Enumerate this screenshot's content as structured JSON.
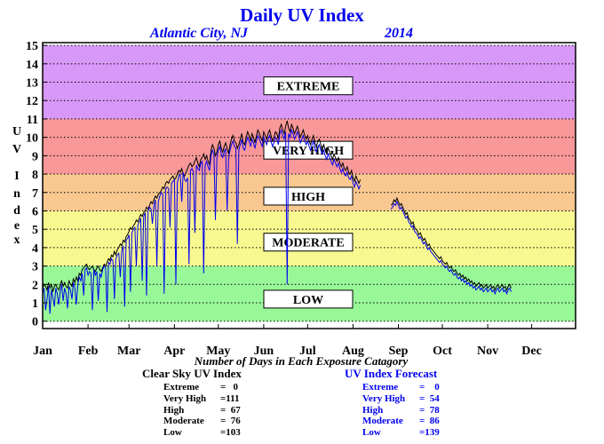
{
  "title": "Daily UV Index",
  "location": "Atlantic City, NJ",
  "year": "2014",
  "ylabel": "UV Index",
  "xlabel_caption": "Number of Days in Each Exposure Catagory",
  "colors": {
    "extreme": "#d898f8",
    "very_high": "#f89898",
    "high": "#f8c890",
    "moderate": "#f8f890",
    "low": "#98f898",
    "clear_sky_line": "#000000",
    "forecast_line": "#0000ee",
    "title": "#0000ee"
  },
  "chart_data": {
    "type": "line",
    "title": "Daily UV Index",
    "ylabel": "UV Index",
    "ylim": [
      0,
      15
    ],
    "yticks": [
      "0",
      "1",
      "2",
      "3",
      "4",
      "5",
      "6",
      "7",
      "8",
      "9",
      "10",
      "11",
      "12",
      "13",
      "14",
      "15"
    ],
    "months": [
      "Jan",
      "Feb",
      "Mar",
      "Apr",
      "May",
      "Jun",
      "Jul",
      "Aug",
      "Sep",
      "Oct",
      "Nov",
      "Dec"
    ],
    "grid": true,
    "bands": [
      {
        "label": "EXTREME",
        "from": 11,
        "to": 15,
        "label_level": 12.8
      },
      {
        "label": "VERY HIGH",
        "from": 8,
        "to": 11,
        "label_level": 9.3
      },
      {
        "label": "HIGH",
        "from": 6,
        "to": 8,
        "label_level": 6.8
      },
      {
        "label": "MODERATE",
        "from": 3,
        "to": 6,
        "label_level": 4.3
      },
      {
        "label": "LOW",
        "from": 0,
        "to": 3,
        "label_level": 1.2
      }
    ],
    "series": [
      {
        "role": "clear_sky",
        "start_day": 1,
        "values": [
          1.8,
          2.0,
          1.9,
          1.7,
          2.1,
          1.8,
          2.0,
          1.6,
          1.9,
          2.0,
          1.8,
          1.7,
          2.0,
          2.2,
          1.9,
          2.1,
          1.9,
          1.8,
          2.2,
          2.0,
          1.9,
          2.3,
          2.1,
          2.4,
          2.2,
          2.6,
          2.5,
          2.8,
          2.9,
          3.0,
          3.1,
          2.9,
          2.8,
          2.9,
          3.0,
          2.8,
          2.7,
          2.9,
          3.0,
          2.8,
          2.7,
          2.9,
          3.1,
          3.0,
          3.2,
          3.4,
          3.3,
          3.6,
          3.5,
          3.8,
          3.6,
          3.9,
          4.0,
          4.2,
          4.1,
          4.4,
          4.3,
          4.6,
          4.7,
          4.9,
          5.1,
          5.0,
          5.2,
          5.3,
          5.5,
          5.4,
          5.6,
          5.8,
          5.7,
          5.9,
          6.0,
          6.2,
          6.1,
          6.3,
          6.5,
          6.4,
          6.6,
          6.8,
          6.7,
          6.9,
          7.0,
          7.1,
          7.3,
          7.2,
          7.5,
          7.6,
          7.5,
          7.7,
          7.8,
          7.9,
          7.7,
          7.8,
          8.0,
          8.2,
          8.1,
          8.3,
          8.0,
          7.9,
          8.1,
          8.3,
          8.5,
          8.6,
          8.4,
          8.5,
          8.7,
          8.9,
          8.6,
          8.4,
          8.8,
          8.9,
          9.1,
          8.8,
          9.0,
          8.7,
          8.5,
          9.3,
          9.6,
          9.4,
          9.0,
          9.2,
          9.6,
          9.8,
          9.4,
          9.2,
          9.5,
          9.7,
          9.4,
          9.1,
          9.6,
          9.9,
          10.1,
          9.8,
          9.7,
          9.4,
          9.6,
          9.9,
          10.2,
          9.7,
          9.6,
          10.0,
          10.3,
          10.1,
          9.8,
          10.2,
          10.0,
          9.7,
          10.1,
          10.4,
          10.2,
          10.0,
          9.8,
          10.3,
          10.1,
          9.9,
          10.2,
          10.4,
          10.1,
          9.8,
          10.0,
          10.3,
          10.2,
          9.9,
          10.5,
          10.7,
          10.4,
          10.2,
          10.6,
          10.9,
          10.5,
          10.3,
          10.7,
          10.5,
          10.2,
          10.4,
          10.6,
          10.3,
          10.0,
          10.2,
          10.4,
          10.1,
          9.9,
          10.1,
          9.8,
          9.6,
          9.9,
          10.1,
          9.7,
          9.5,
          9.8,
          9.9,
          9.6,
          9.4,
          9.6,
          9.3,
          9.1,
          9.4,
          9.2,
          9.0,
          8.8,
          9.1,
          8.9,
          8.7,
          8.9,
          8.6,
          8.4,
          8.6,
          8.3,
          8.2,
          8.4,
          8.1,
          8.0,
          8.2,
          7.8,
          7.6,
          7.9,
          7.7,
          7.5,
          7.7,
          null,
          null,
          null,
          null,
          null,
          null,
          null,
          null,
          null,
          null,
          null,
          null,
          null,
          null,
          null,
          null,
          null,
          null,
          null,
          null,
          6.3,
          6.4,
          6.6,
          6.5,
          6.7,
          6.5,
          6.3,
          6.4,
          6.2,
          6.0,
          5.8,
          5.9,
          5.6,
          5.5,
          5.3,
          5.4,
          5.1,
          5.0,
          4.9,
          4.7,
          4.8,
          4.6,
          4.4,
          4.5,
          4.3,
          4.1,
          4.2,
          4.0,
          3.9,
          3.8,
          3.7,
          3.6,
          3.5,
          3.4,
          3.5,
          3.3,
          3.2,
          3.1,
          3.2,
          3.0,
          2.9,
          3.0,
          2.8,
          2.7,
          2.8,
          2.6,
          2.5,
          2.6,
          2.4,
          2.5,
          2.3,
          2.4,
          2.2,
          2.3,
          2.1,
          2.2,
          2.0,
          2.1,
          1.9,
          2.0,
          2.1,
          1.9,
          2.0,
          1.8,
          1.9,
          2.0,
          1.8,
          1.9,
          2.0,
          1.8,
          1.9,
          1.7,
          1.9,
          2.0,
          1.8,
          1.9,
          2.0,
          1.8,
          1.9,
          1.7,
          1.9,
          2.0,
          1.8
        ]
      },
      {
        "role": "forecast",
        "start_day": 1,
        "values": [
          1.5,
          1.8,
          0.6,
          1.2,
          1.9,
          0.4,
          1.7,
          1.3,
          0.8,
          1.8,
          1.5,
          0.9,
          1.6,
          2.0,
          1.1,
          1.8,
          1.5,
          0.7,
          1.9,
          1.7,
          1.2,
          2.1,
          1.8,
          0.9,
          2.0,
          2.4,
          2.2,
          2.6,
          1.4,
          2.8,
          2.9,
          2.5,
          2.7,
          2.6,
          0.6,
          2.8,
          2.5,
          2.7,
          1.1,
          2.6,
          2.4,
          2.8,
          3.0,
          2.9,
          0.5,
          3.2,
          3.1,
          3.4,
          3.3,
          1.2,
          3.4,
          3.6,
          3.7,
          2.4,
          3.8,
          4.1,
          0.8,
          4.4,
          4.5,
          4.7,
          1.6,
          4.8,
          5.0,
          5.1,
          3.0,
          5.2,
          5.4,
          5.6,
          2.2,
          5.7,
          5.9,
          1.4,
          6.0,
          6.2,
          6.1,
          5.3,
          6.3,
          6.6,
          3.0,
          6.5,
          6.8,
          7.0,
          6.9,
          1.5,
          7.2,
          7.3,
          7.2,
          5.1,
          7.5,
          7.6,
          7.7,
          2.0,
          7.5,
          7.9,
          8.0,
          6.5,
          8.1,
          7.7,
          7.6,
          7.8,
          3.1,
          8.2,
          8.3,
          8.1,
          4.8,
          8.5,
          8.3,
          8.2,
          8.6,
          8.7,
          2.6,
          8.5,
          8.7,
          8.4,
          8.2,
          9.0,
          9.3,
          9.1,
          5.5,
          8.9,
          9.3,
          9.5,
          9.1,
          8.9,
          9.2,
          9.4,
          6.0,
          8.8,
          9.3,
          9.6,
          9.8,
          9.5,
          9.4,
          4.2,
          9.3,
          9.6,
          9.9,
          9.4,
          9.3,
          9.7,
          10.0,
          9.8,
          9.5,
          9.9,
          9.7,
          9.4,
          9.8,
          10.1,
          9.9,
          9.7,
          9.5,
          10.0,
          9.8,
          9.6,
          9.9,
          10.1,
          9.8,
          9.5,
          9.7,
          10.0,
          9.9,
          9.6,
          10.2,
          10.4,
          10.1,
          9.9,
          10.3,
          2.0,
          10.2,
          10.0,
          10.4,
          10.2,
          9.9,
          10.1,
          10.3,
          10.0,
          9.7,
          9.9,
          10.1,
          9.8,
          9.6,
          9.8,
          9.5,
          9.3,
          9.6,
          9.8,
          9.4,
          9.2,
          9.5,
          9.6,
          9.3,
          9.1,
          9.3,
          9.0,
          8.8,
          9.1,
          8.9,
          8.7,
          8.5,
          8.8,
          8.6,
          8.4,
          8.6,
          8.3,
          8.1,
          8.3,
          8.0,
          7.9,
          8.1,
          7.8,
          7.7,
          7.9,
          7.5,
          7.3,
          7.6,
          7.4,
          7.2,
          7.4,
          null,
          null,
          null,
          null,
          null,
          null,
          null,
          null,
          null,
          null,
          null,
          null,
          null,
          null,
          null,
          null,
          null,
          null,
          null,
          null,
          6.1,
          6.2,
          6.4,
          6.3,
          6.5,
          6.3,
          6.1,
          6.2,
          6.0,
          5.8,
          5.6,
          5.7,
          5.4,
          5.3,
          5.1,
          5.2,
          4.9,
          4.8,
          4.7,
          4.5,
          4.6,
          4.4,
          4.2,
          4.3,
          4.1,
          3.9,
          4.0,
          3.8,
          3.7,
          3.6,
          3.5,
          3.4,
          3.3,
          3.2,
          3.3,
          3.1,
          3.0,
          2.9,
          3.0,
          2.8,
          2.7,
          2.8,
          2.6,
          2.5,
          2.6,
          2.4,
          2.3,
          2.4,
          2.2,
          2.3,
          2.1,
          2.2,
          2.0,
          2.1,
          1.9,
          2.0,
          1.8,
          1.9,
          1.7,
          1.8,
          1.9,
          1.7,
          1.8,
          1.6,
          1.7,
          1.8,
          1.6,
          1.7,
          1.8,
          1.6,
          1.7,
          1.5,
          1.7,
          1.8,
          1.6,
          1.7,
          1.8,
          1.6,
          1.7,
          1.5,
          1.7,
          1.8,
          1.6
        ]
      }
    ]
  },
  "stats": {
    "clear": {
      "heading": "Clear Sky UV Index",
      "rows": [
        {
          "label": "Extreme",
          "value": "=   0"
        },
        {
          "label": "Very High",
          "value": "=111"
        },
        {
          "label": "High",
          "value": "=  67"
        },
        {
          "label": "Moderate",
          "value": "=  76"
        },
        {
          "label": "Low",
          "value": "=103"
        }
      ]
    },
    "forecast": {
      "heading": "UV Index Forecast",
      "rows": [
        {
          "label": "Extreme",
          "value": "=    0"
        },
        {
          "label": "Very High",
          "value": "=  54"
        },
        {
          "label": "High",
          "value": "=  78"
        },
        {
          "label": "Moderate",
          "value": "=  86"
        },
        {
          "label": "Low",
          "value": "=139"
        }
      ]
    }
  }
}
